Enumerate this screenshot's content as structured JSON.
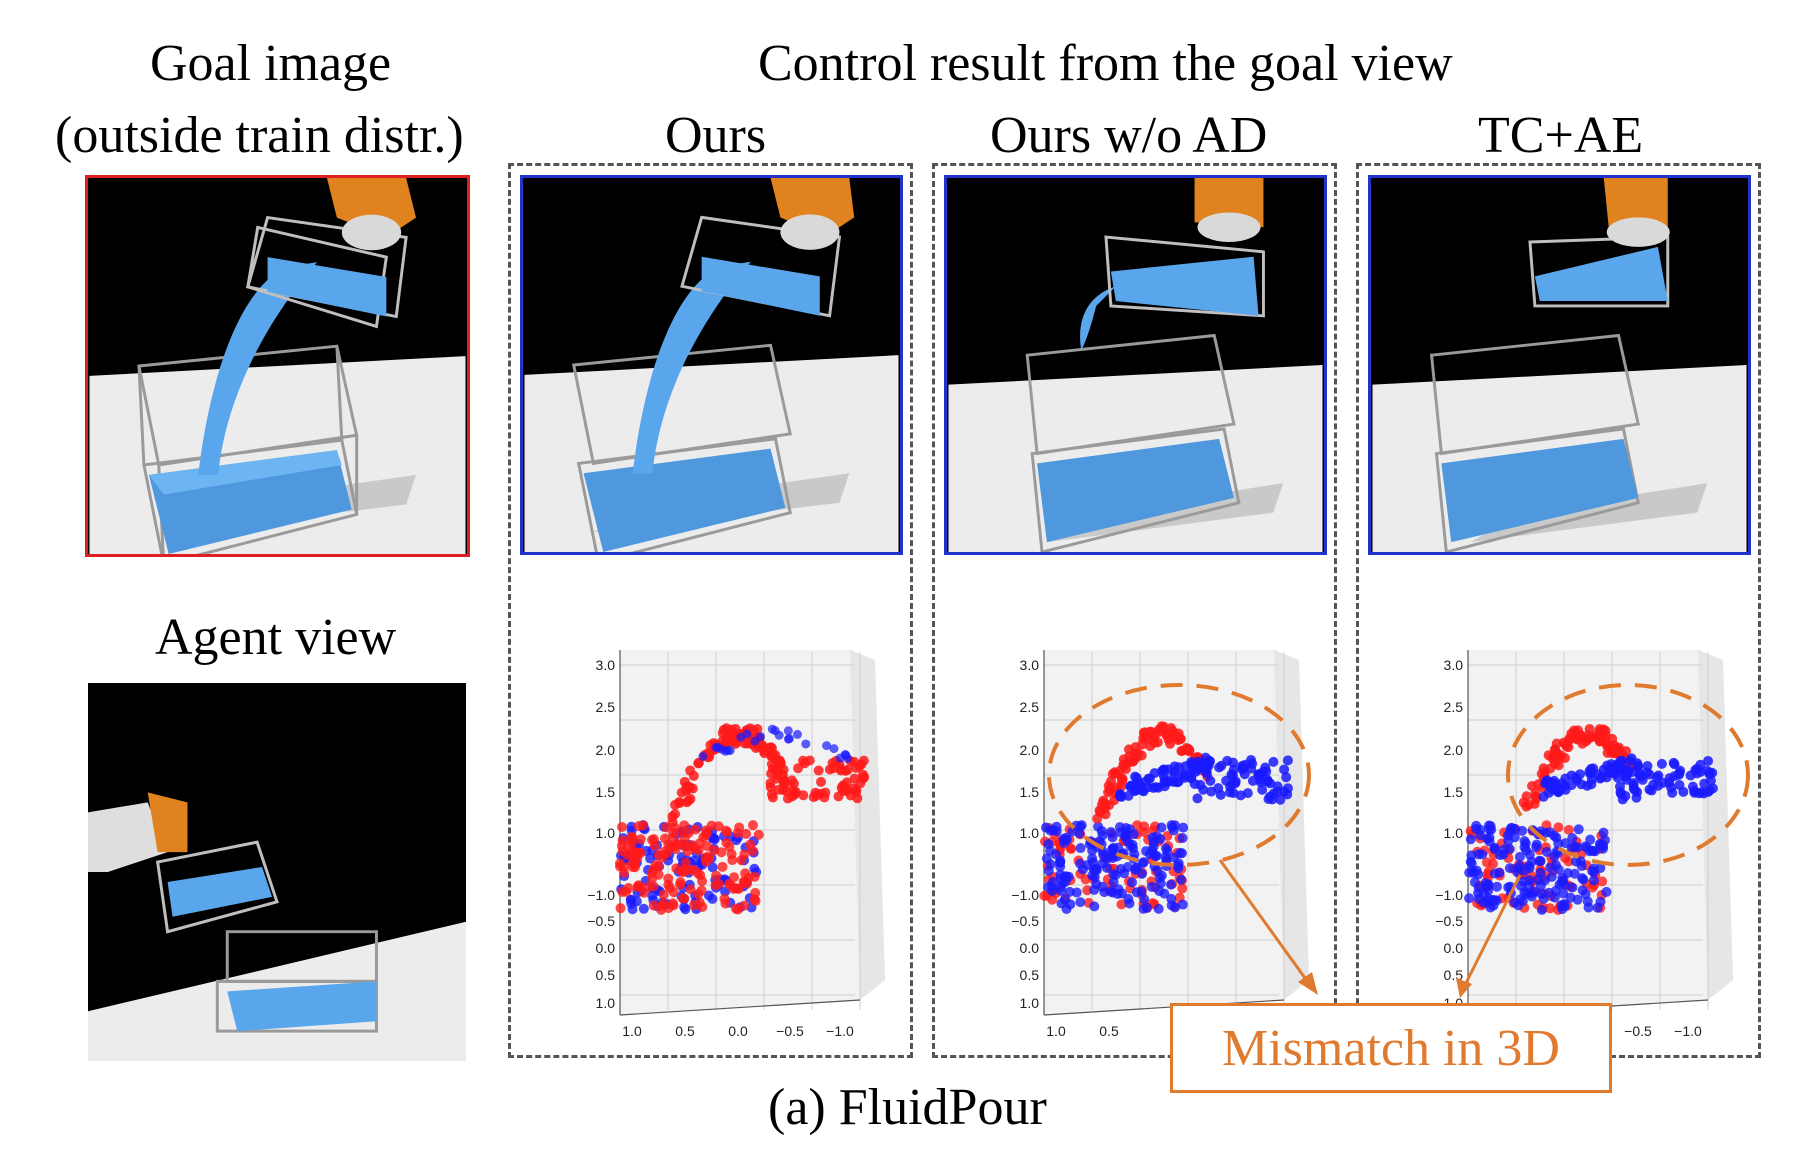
{
  "headers": {
    "goal_line1": "Goal image",
    "goal_line2": "(outside train distr.)",
    "control": "Control result from the goal view",
    "ours": "Ours",
    "ours_wo_ad": "Ours w/o AD",
    "tc_ae": "TC+AE",
    "agent_view": "Agent view"
  },
  "callout": "Mismatch in 3D",
  "caption": "(a) FluidPour",
  "colors": {
    "goal_border": "#e02020",
    "result_border": "#2233cc",
    "goal_points": "#ff1a1a",
    "result_points": "#1a1aff",
    "highlight": "#e07a2e",
    "fluid": "#5aa6ec"
  },
  "plot_axes": {
    "z_ticks": [
      "3.0",
      "2.5",
      "2.0",
      "1.5",
      "1.0"
    ],
    "y_ticks": [
      "−1.0",
      "−0.5",
      "0.0",
      "0.5",
      "1.0"
    ],
    "x_ticks": [
      "1.0",
      "0.5",
      "0.0",
      "−0.5",
      "−1.0"
    ]
  }
}
